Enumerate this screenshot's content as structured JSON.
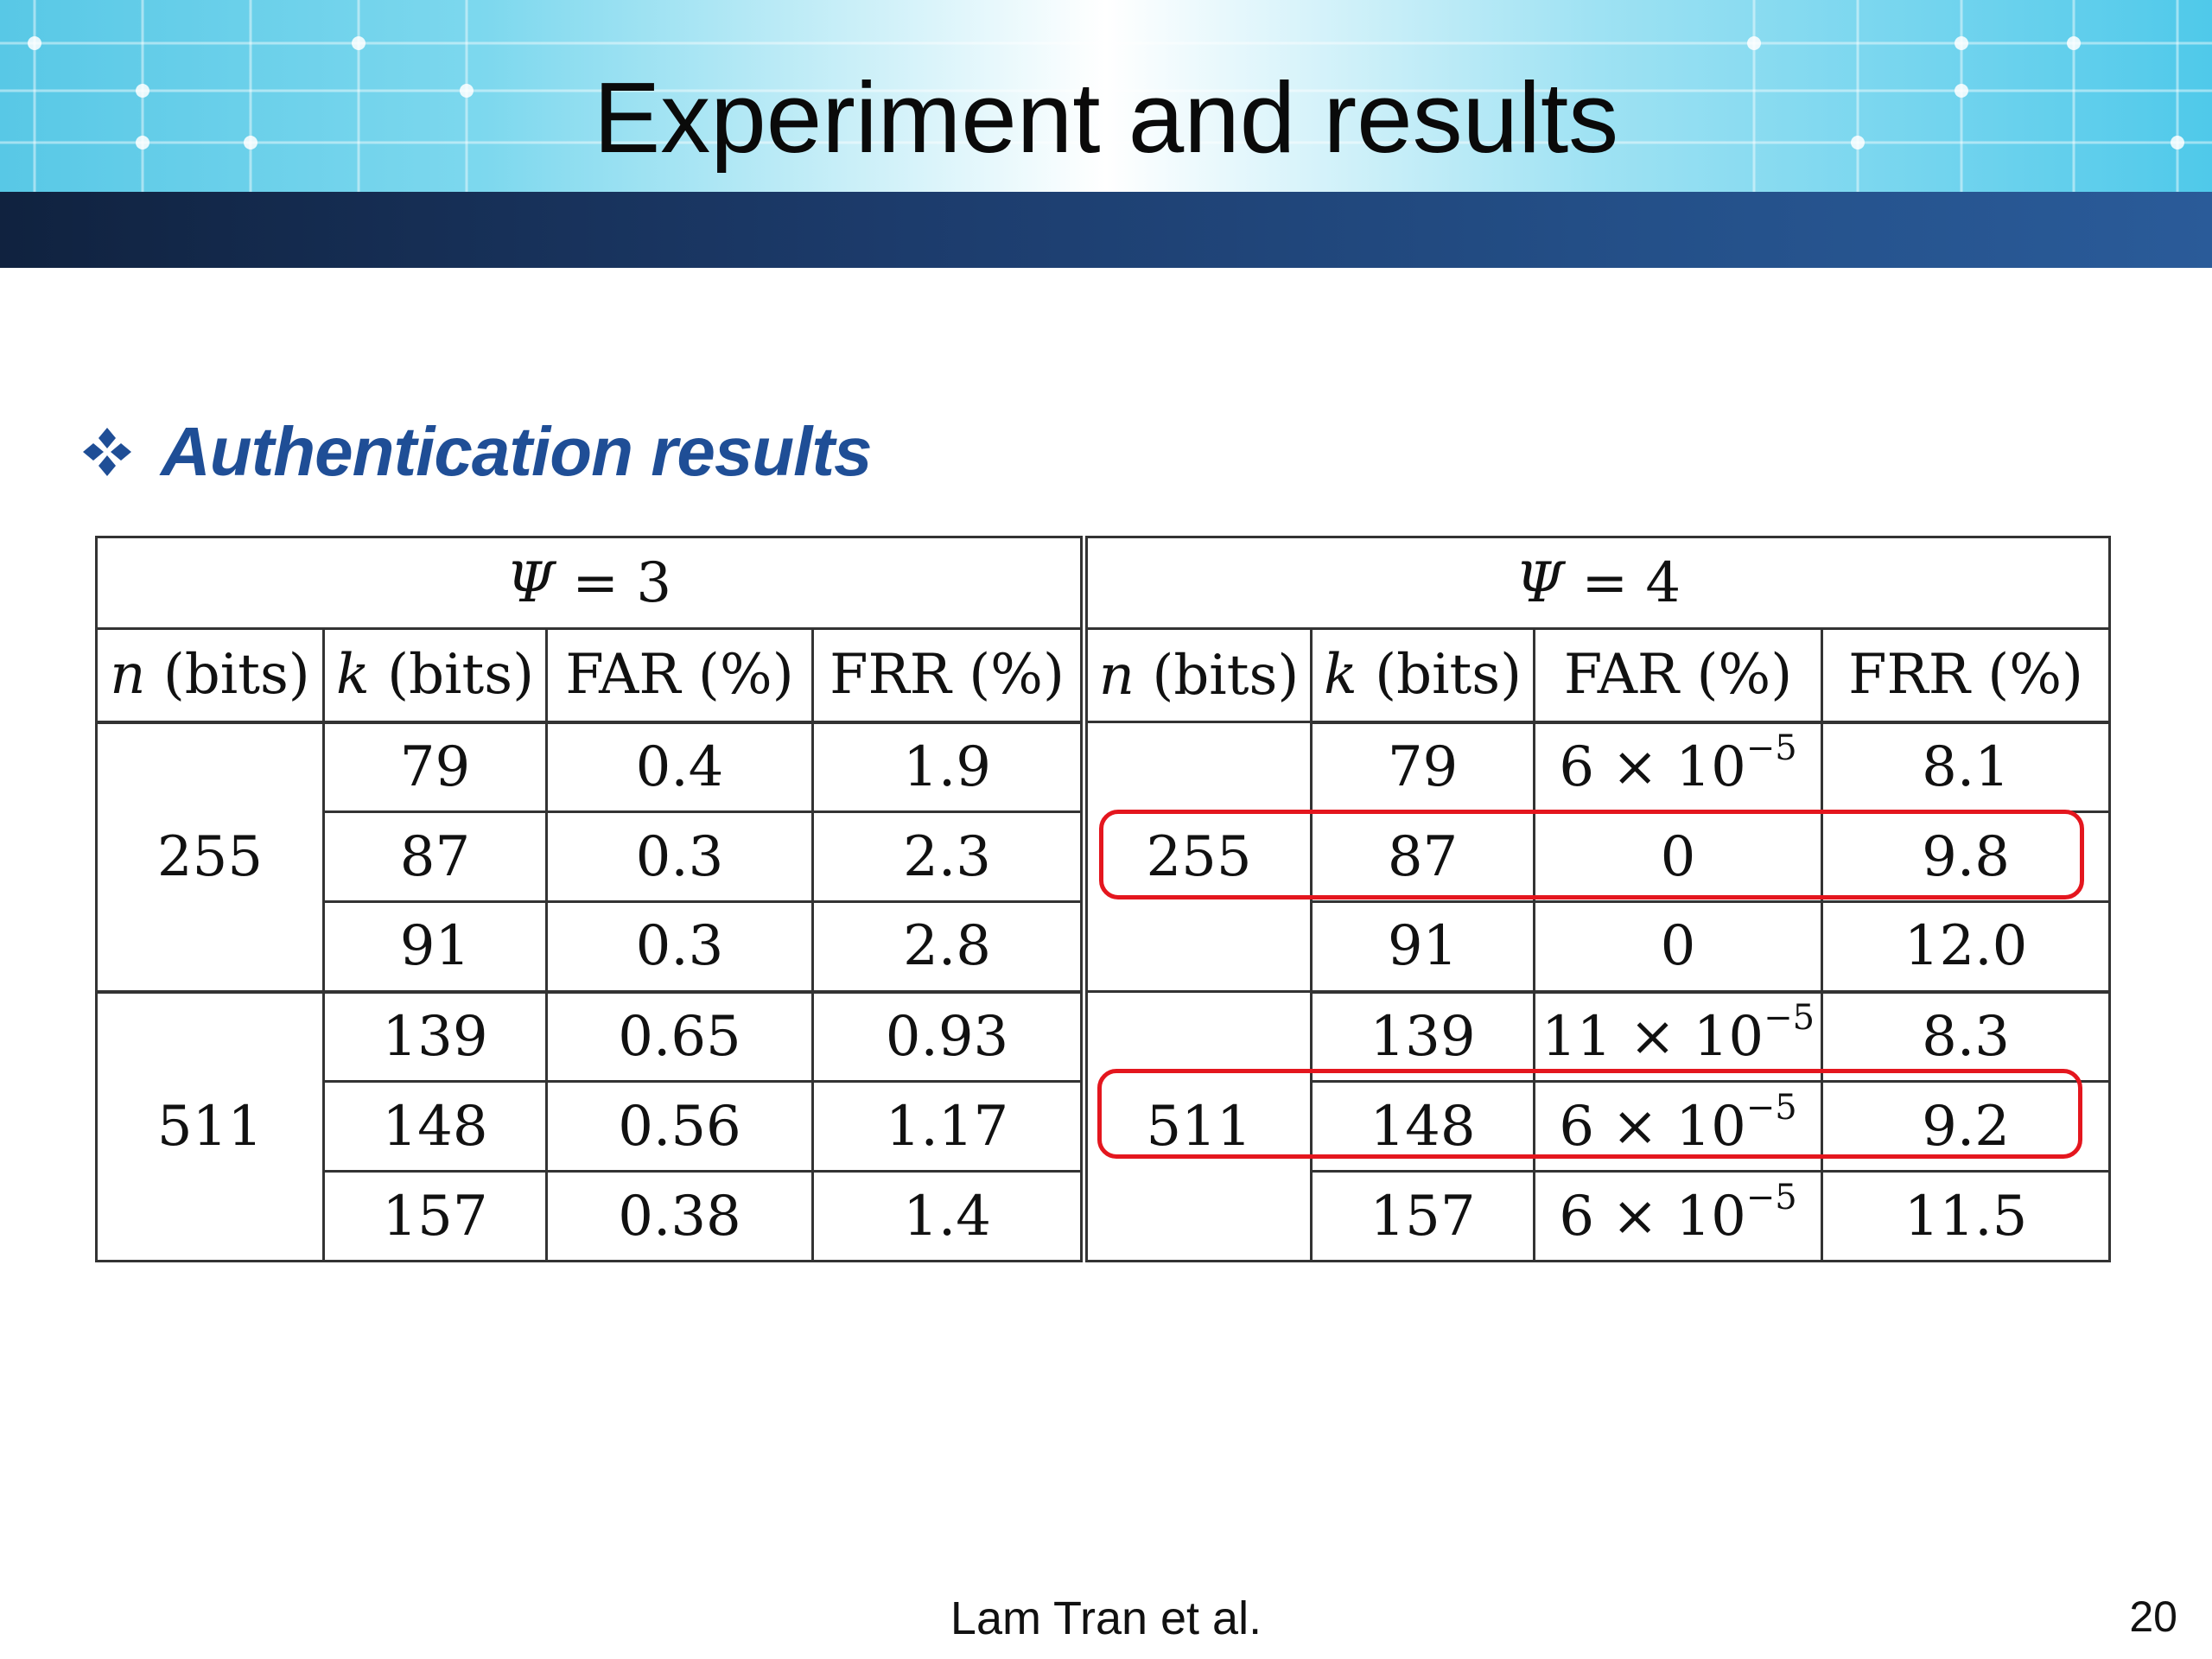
{
  "slide": {
    "title": "Experiment and results",
    "section_heading": "Authentication results",
    "footer_author": "Lam Tran et al.",
    "page_number": "20"
  },
  "colors": {
    "heading": "#1f4e96",
    "highlight": "#e4161e",
    "banner_dark": "#1c3b6b"
  },
  "table": {
    "groups": [
      {
        "label": "Ψ = 3",
        "symbol": "Ψ",
        "value": "3"
      },
      {
        "label": "Ψ = 4",
        "symbol": "Ψ",
        "value": "4"
      }
    ],
    "columns": [
      "n (bits)",
      "k (bits)",
      "FAR (%)",
      "FRR (%)"
    ],
    "blocks": [
      {
        "n": "255",
        "rows": [
          {
            "k": "79",
            "psi3": {
              "far": "0.4",
              "frr": "1.9"
            },
            "psi4": {
              "far": "6 × 10−5",
              "frr": "8.1"
            }
          },
          {
            "k": "87",
            "psi3": {
              "far": "0.3",
              "frr": "2.3"
            },
            "psi4": {
              "far": "0",
              "frr": "9.8"
            },
            "highlighted": true
          },
          {
            "k": "91",
            "psi3": {
              "far": "0.3",
              "frr": "2.8"
            },
            "psi4": {
              "far": "0",
              "frr": "12.0"
            }
          }
        ]
      },
      {
        "n": "511",
        "rows": [
          {
            "k": "139",
            "psi3": {
              "far": "0.65",
              "frr": "0.93"
            },
            "psi4": {
              "far": "11 × 10−5",
              "frr": "8.3"
            }
          },
          {
            "k": "148",
            "psi3": {
              "far": "0.56",
              "frr": "1.17"
            },
            "psi4": {
              "far": "6 × 10−5",
              "frr": "9.2"
            },
            "highlighted": true
          },
          {
            "k": "157",
            "psi3": {
              "far": "0.38",
              "frr": "1.4"
            },
            "psi4": {
              "far": "6 × 10−5",
              "frr": "11.5"
            }
          }
        ]
      }
    ]
  }
}
